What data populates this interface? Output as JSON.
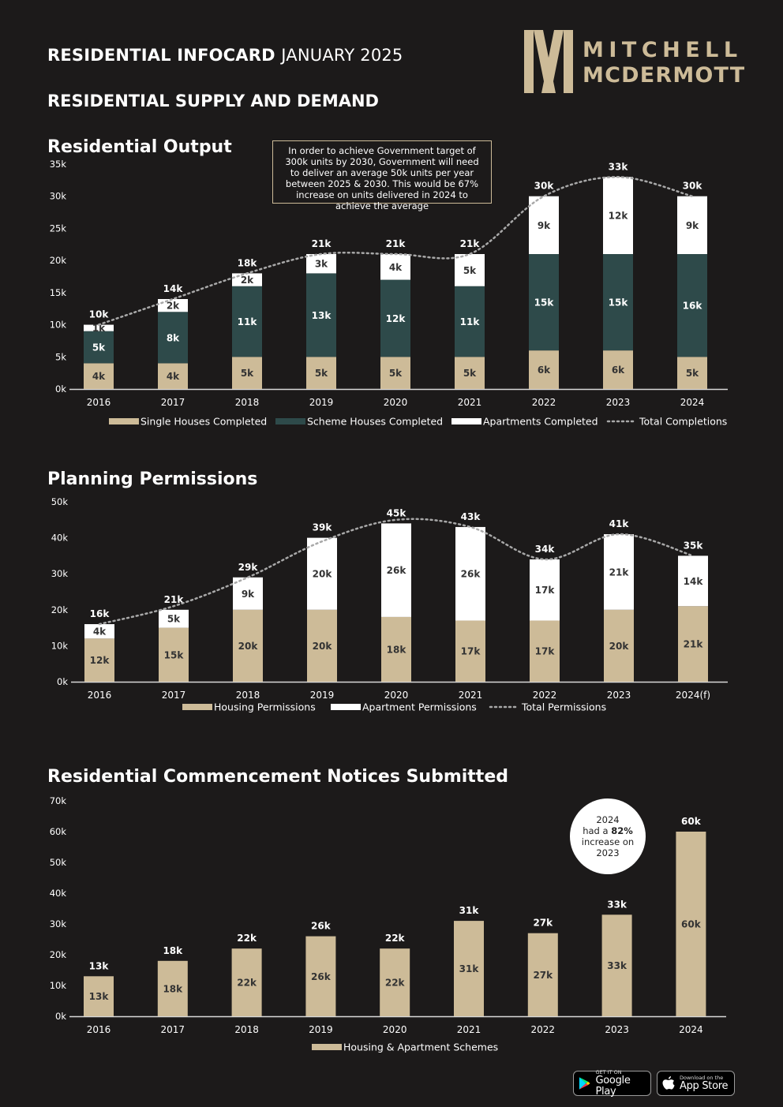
{
  "header": {
    "title_bold": "RESIDENTIAL INFOCARD",
    "title_light": "JANUARY 2025",
    "subtitle": "RESIDENTIAL SUPPLY AND DEMAND"
  },
  "logo": {
    "line1": "MITCHELL",
    "line2": "MCDERMOTT"
  },
  "colors": {
    "background": "#1c1a1a",
    "gold": "#cdbb98",
    "teal": "#2e4a4a",
    "white": "#ffffff",
    "dots": "#9a9a9a"
  },
  "note": "In order to achieve Government target of 300k units by 2030, Government will need to deliver an average 50k units per year between 2025 & 2030. This would be 67% increase on units delivered in 2024 to achieve the average",
  "bubble": {
    "l1": "2024",
    "l2a": "had a ",
    "l2b": "82%",
    "l3": "increase on",
    "l4": "2023"
  },
  "stores": {
    "google_small": "GET IT ON",
    "google_big": "Google Play",
    "apple_small": "Download on the",
    "apple_big": "App Store"
  },
  "chart_data": [
    {
      "type": "bar",
      "stacked": true,
      "title": "Residential Output",
      "categories": [
        "2016",
        "2017",
        "2018",
        "2019",
        "2020",
        "2021",
        "2022",
        "2023",
        "2024"
      ],
      "ylim": [
        0,
        35
      ],
      "yticks": [
        "0k",
        "5k",
        "10k",
        "15k",
        "20k",
        "25k",
        "30k",
        "35k"
      ],
      "series": [
        {
          "name": "Single Houses Completed",
          "color": "#cdbb98",
          "values": [
            4,
            4,
            5,
            5,
            5,
            5,
            6,
            6,
            5
          ],
          "labels": [
            "4k",
            "4k",
            "5k",
            "5k",
            "5k",
            "5k",
            "6k",
            "6k",
            "5k"
          ]
        },
        {
          "name": "Scheme Houses Completed",
          "color": "#2e4a4a",
          "values": [
            5,
            8,
            11,
            13,
            12,
            11,
            15,
            15,
            16
          ],
          "labels": [
            "5k",
            "8k",
            "11k",
            "13k",
            "12k",
            "11k",
            "15k",
            "15k",
            "16k"
          ]
        },
        {
          "name": "Apartments Completed",
          "color": "#ffffff",
          "values": [
            1,
            2,
            2,
            3,
            4,
            5,
            9,
            12,
            9
          ],
          "labels": [
            "1k",
            "2k",
            "2k",
            "3k",
            "4k",
            "5k",
            "9k",
            "12k",
            "9k"
          ]
        }
      ],
      "total": {
        "name": "Total Completions",
        "values": [
          10,
          14,
          18,
          21,
          21,
          21,
          30,
          33,
          30
        ],
        "labels": [
          "10k",
          "14k",
          "18k",
          "21k",
          "21k",
          "21k",
          "30k",
          "33k",
          "30k"
        ]
      }
    },
    {
      "type": "bar",
      "stacked": true,
      "title": "Planning Permissions",
      "categories": [
        "2016",
        "2017",
        "2018",
        "2019",
        "2020",
        "2021",
        "2022",
        "2023",
        "2024(f)"
      ],
      "ylim": [
        0,
        50
      ],
      "yticks": [
        "0k",
        "10k",
        "20k",
        "30k",
        "40k",
        "50k"
      ],
      "series": [
        {
          "name": "Housing Permissions",
          "color": "#cdbb98",
          "values": [
            12,
            15,
            20,
            20,
            18,
            17,
            17,
            20,
            21
          ],
          "labels": [
            "12k",
            "15k",
            "20k",
            "20k",
            "18k",
            "17k",
            "17k",
            "20k",
            "21k"
          ]
        },
        {
          "name": "Apartment Permissions",
          "color": "#ffffff",
          "values": [
            4,
            5,
            9,
            20,
            26,
            26,
            17,
            21,
            14
          ],
          "labels": [
            "4k",
            "5k",
            "9k",
            "20k",
            "26k",
            "26k",
            "17k",
            "21k",
            "14k"
          ]
        }
      ],
      "total": {
        "name": "Total Permissions",
        "values": [
          16,
          21,
          29,
          39,
          45,
          43,
          34,
          41,
          35
        ],
        "labels": [
          "16k",
          "21k",
          "29k",
          "39k",
          "45k",
          "43k",
          "34k",
          "41k",
          "35k"
        ]
      }
    },
    {
      "type": "bar",
      "title": "Residential Commencement Notices Submitted",
      "categories": [
        "2016",
        "2017",
        "2018",
        "2019",
        "2020",
        "2021",
        "2022",
        "2023",
        "2024"
      ],
      "ylim": [
        0,
        70
      ],
      "yticks": [
        "0k",
        "10k",
        "20k",
        "30k",
        "40k",
        "50k",
        "60k",
        "70k"
      ],
      "series": [
        {
          "name": "Housing & Apartment Schemes",
          "color": "#cdbb98",
          "values": [
            13,
            18,
            22,
            26,
            22,
            31,
            27,
            33,
            60
          ],
          "labels": [
            "13k",
            "18k",
            "22k",
            "26k",
            "22k",
            "31k",
            "27k",
            "33k",
            "60k"
          ]
        }
      ]
    }
  ]
}
